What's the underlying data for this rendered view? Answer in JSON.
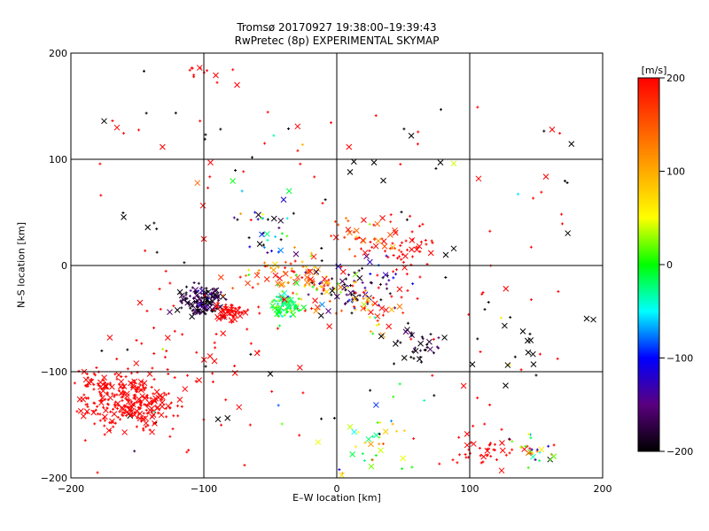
{
  "chart_data": [
    {
      "type": "scatter",
      "title": "Tromsø 20170927 19:38:00–19:39:43",
      "subtitle": "RwPretec (8p) EXPERIMENTAL SKYMAP",
      "xlabel": "E–W location [km]",
      "ylabel": "N–S location [km]",
      "xlim": [
        -200,
        200
      ],
      "ylim": [
        -200,
        200
      ],
      "xticks": [
        -200,
        -100,
        0,
        100,
        200
      ],
      "yticks": [
        -200,
        -100,
        0,
        100,
        200
      ],
      "grid": true,
      "marker_types": [
        "cross",
        "plus"
      ],
      "clusters": [
        {
          "x": -155,
          "y": -130,
          "sx": 16,
          "sy": 12,
          "n": 260,
          "v": 200,
          "vs": 0
        },
        {
          "x": -180,
          "y": -115,
          "sx": 8,
          "sy": 10,
          "n": 40,
          "v": 200,
          "vs": 0
        },
        {
          "x": -102,
          "y": -33,
          "sx": 8,
          "sy": 7,
          "n": 140,
          "v": -180,
          "vs": 25
        },
        {
          "x": -80,
          "y": -44,
          "sx": 6,
          "sy": 4,
          "n": 60,
          "v": 200,
          "vs": 0
        },
        {
          "x": -38,
          "y": -38,
          "sx": 6,
          "sy": 5,
          "n": 70,
          "v": -10,
          "vs": 25
        },
        {
          "x": -40,
          "y": -8,
          "sx": 20,
          "sy": 10,
          "n": 60,
          "v": 150,
          "vs": 60
        },
        {
          "x": -15,
          "y": -18,
          "sx": 10,
          "sy": 10,
          "n": 50,
          "v": 120,
          "vs": 80
        },
        {
          "x": 10,
          "y": -18,
          "sx": 18,
          "sy": 12,
          "n": 70,
          "v": -160,
          "vs": 40
        },
        {
          "x": 25,
          "y": -42,
          "sx": 12,
          "sy": 10,
          "n": 40,
          "v": 120,
          "vs": 80
        },
        {
          "x": 50,
          "y": 15,
          "sx": 12,
          "sy": 10,
          "n": 45,
          "v": 200,
          "vs": 0
        },
        {
          "x": 20,
          "y": 30,
          "sx": 14,
          "sy": 8,
          "n": 35,
          "v": 170,
          "vs": 40
        },
        {
          "x": -50,
          "y": 35,
          "sx": 14,
          "sy": 14,
          "n": 35,
          "v": -120,
          "vs": 80
        },
        {
          "x": 60,
          "y": -75,
          "sx": 10,
          "sy": 8,
          "n": 35,
          "v": -190,
          "vs": 15
        },
        {
          "x": 110,
          "y": -175,
          "sx": 14,
          "sy": 10,
          "n": 40,
          "v": 200,
          "vs": 0
        },
        {
          "x": 145,
          "y": -175,
          "sx": 10,
          "sy": 10,
          "n": 30,
          "v": 60,
          "vs": 120
        },
        {
          "x": 25,
          "y": -165,
          "sx": 22,
          "sy": 18,
          "n": 40,
          "v": 30,
          "vs": 60
        },
        {
          "x": -100,
          "y": 185,
          "sx": 8,
          "sy": 8,
          "n": 12,
          "v": 200,
          "vs": 0
        },
        {
          "x": -115,
          "y": -90,
          "sx": 30,
          "sy": 30,
          "n": 40,
          "v": 200,
          "vs": 0
        },
        {
          "x": 135,
          "y": -80,
          "sx": 10,
          "sy": 15,
          "n": 8,
          "v": -200,
          "vs": 0
        }
      ],
      "points": [
        {
          "x": -175,
          "y": 136,
          "v": -200,
          "m": "cross"
        },
        {
          "x": -145,
          "y": 183,
          "v": -200,
          "m": "plus"
        },
        {
          "x": -75,
          "y": 170,
          "v": 200,
          "m": "cross"
        },
        {
          "x": -95,
          "y": 97,
          "v": 200,
          "m": "cross"
        },
        {
          "x": 162,
          "y": 128,
          "v": 200,
          "m": "cross"
        },
        {
          "x": 78,
          "y": 97,
          "v": -200,
          "m": "cross"
        },
        {
          "x": 88,
          "y": 96,
          "v": 40,
          "m": "cross"
        },
        {
          "x": 28,
          "y": 97,
          "v": -200,
          "m": "cross"
        },
        {
          "x": 10,
          "y": 88,
          "v": -200,
          "m": "cross"
        },
        {
          "x": 35,
          "y": 80,
          "v": -200,
          "m": "cross"
        },
        {
          "x": -40,
          "y": 62,
          "v": -120,
          "m": "cross"
        },
        {
          "x": -100,
          "y": 25,
          "v": 200,
          "m": "cross"
        },
        {
          "x": -148,
          "y": -35,
          "v": 200,
          "m": "cross"
        },
        {
          "x": 193,
          "y": -51,
          "v": -200,
          "m": "cross"
        },
        {
          "x": 188,
          "y": -50,
          "v": -200,
          "m": "cross"
        },
        {
          "x": 127,
          "y": -113,
          "v": -200,
          "m": "cross"
        },
        {
          "x": 140,
          "y": -62,
          "v": -200,
          "m": "cross"
        },
        {
          "x": 148,
          "y": -93,
          "v": -200,
          "m": "cross"
        },
        {
          "x": 102,
          "y": -93,
          "v": -200,
          "m": "cross"
        },
        {
          "x": 88,
          "y": 16,
          "v": -200,
          "m": "cross"
        },
        {
          "x": 82,
          "y": 10,
          "v": -200,
          "m": "cross"
        },
        {
          "x": -50,
          "y": -102,
          "v": -200,
          "m": "cross"
        },
        {
          "x": -180,
          "y": -195,
          "v": 200,
          "m": "plus"
        },
        {
          "x": -190,
          "y": -100,
          "v": 200,
          "m": "cross"
        }
      ]
    },
    {
      "type": "heatmap",
      "title": "[m/s]",
      "range": [
        -200,
        200
      ],
      "ticks": [
        -200,
        -100,
        0,
        100,
        200
      ],
      "colormap": [
        "#000000",
        "#5a007f",
        "#0000ff",
        "#00ffff",
        "#00ff00",
        "#ffff00",
        "#ff8000",
        "#ff0000"
      ]
    }
  ]
}
